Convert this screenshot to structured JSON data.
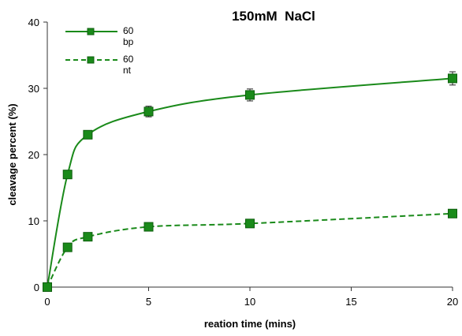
{
  "chart_data": {
    "type": "line",
    "title": "150mM  NaCl",
    "xlabel": "reation time (mins)",
    "ylabel": "cleavage percent (%)",
    "xlim": [
      0,
      20
    ],
    "ylim": [
      0,
      40
    ],
    "xticks": [
      0,
      5,
      10,
      15,
      20
    ],
    "yticks": [
      0,
      10,
      20,
      30,
      40
    ],
    "grid": false,
    "legend_position": "top-left",
    "series": [
      {
        "name_lines": [
          "60",
          "bp"
        ],
        "line_style": "solid",
        "marker": "square",
        "color": "#1a8a1a",
        "x": [
          0,
          1,
          2,
          5,
          10,
          20
        ],
        "y": [
          0,
          17,
          23,
          26.5,
          29,
          31.5
        ],
        "error": [
          0,
          0.4,
          0.4,
          0.8,
          0.9,
          1.0
        ]
      },
      {
        "name_lines": [
          "60",
          "nt"
        ],
        "line_style": "dashed",
        "marker": "square",
        "color": "#1a8a1a",
        "x": [
          0,
          1,
          2,
          5,
          10,
          20
        ],
        "y": [
          0,
          6,
          7.6,
          9.1,
          9.6,
          11.1
        ],
        "error": [
          0,
          0.3,
          0.3,
          0.3,
          0.3,
          0.3
        ]
      }
    ]
  }
}
